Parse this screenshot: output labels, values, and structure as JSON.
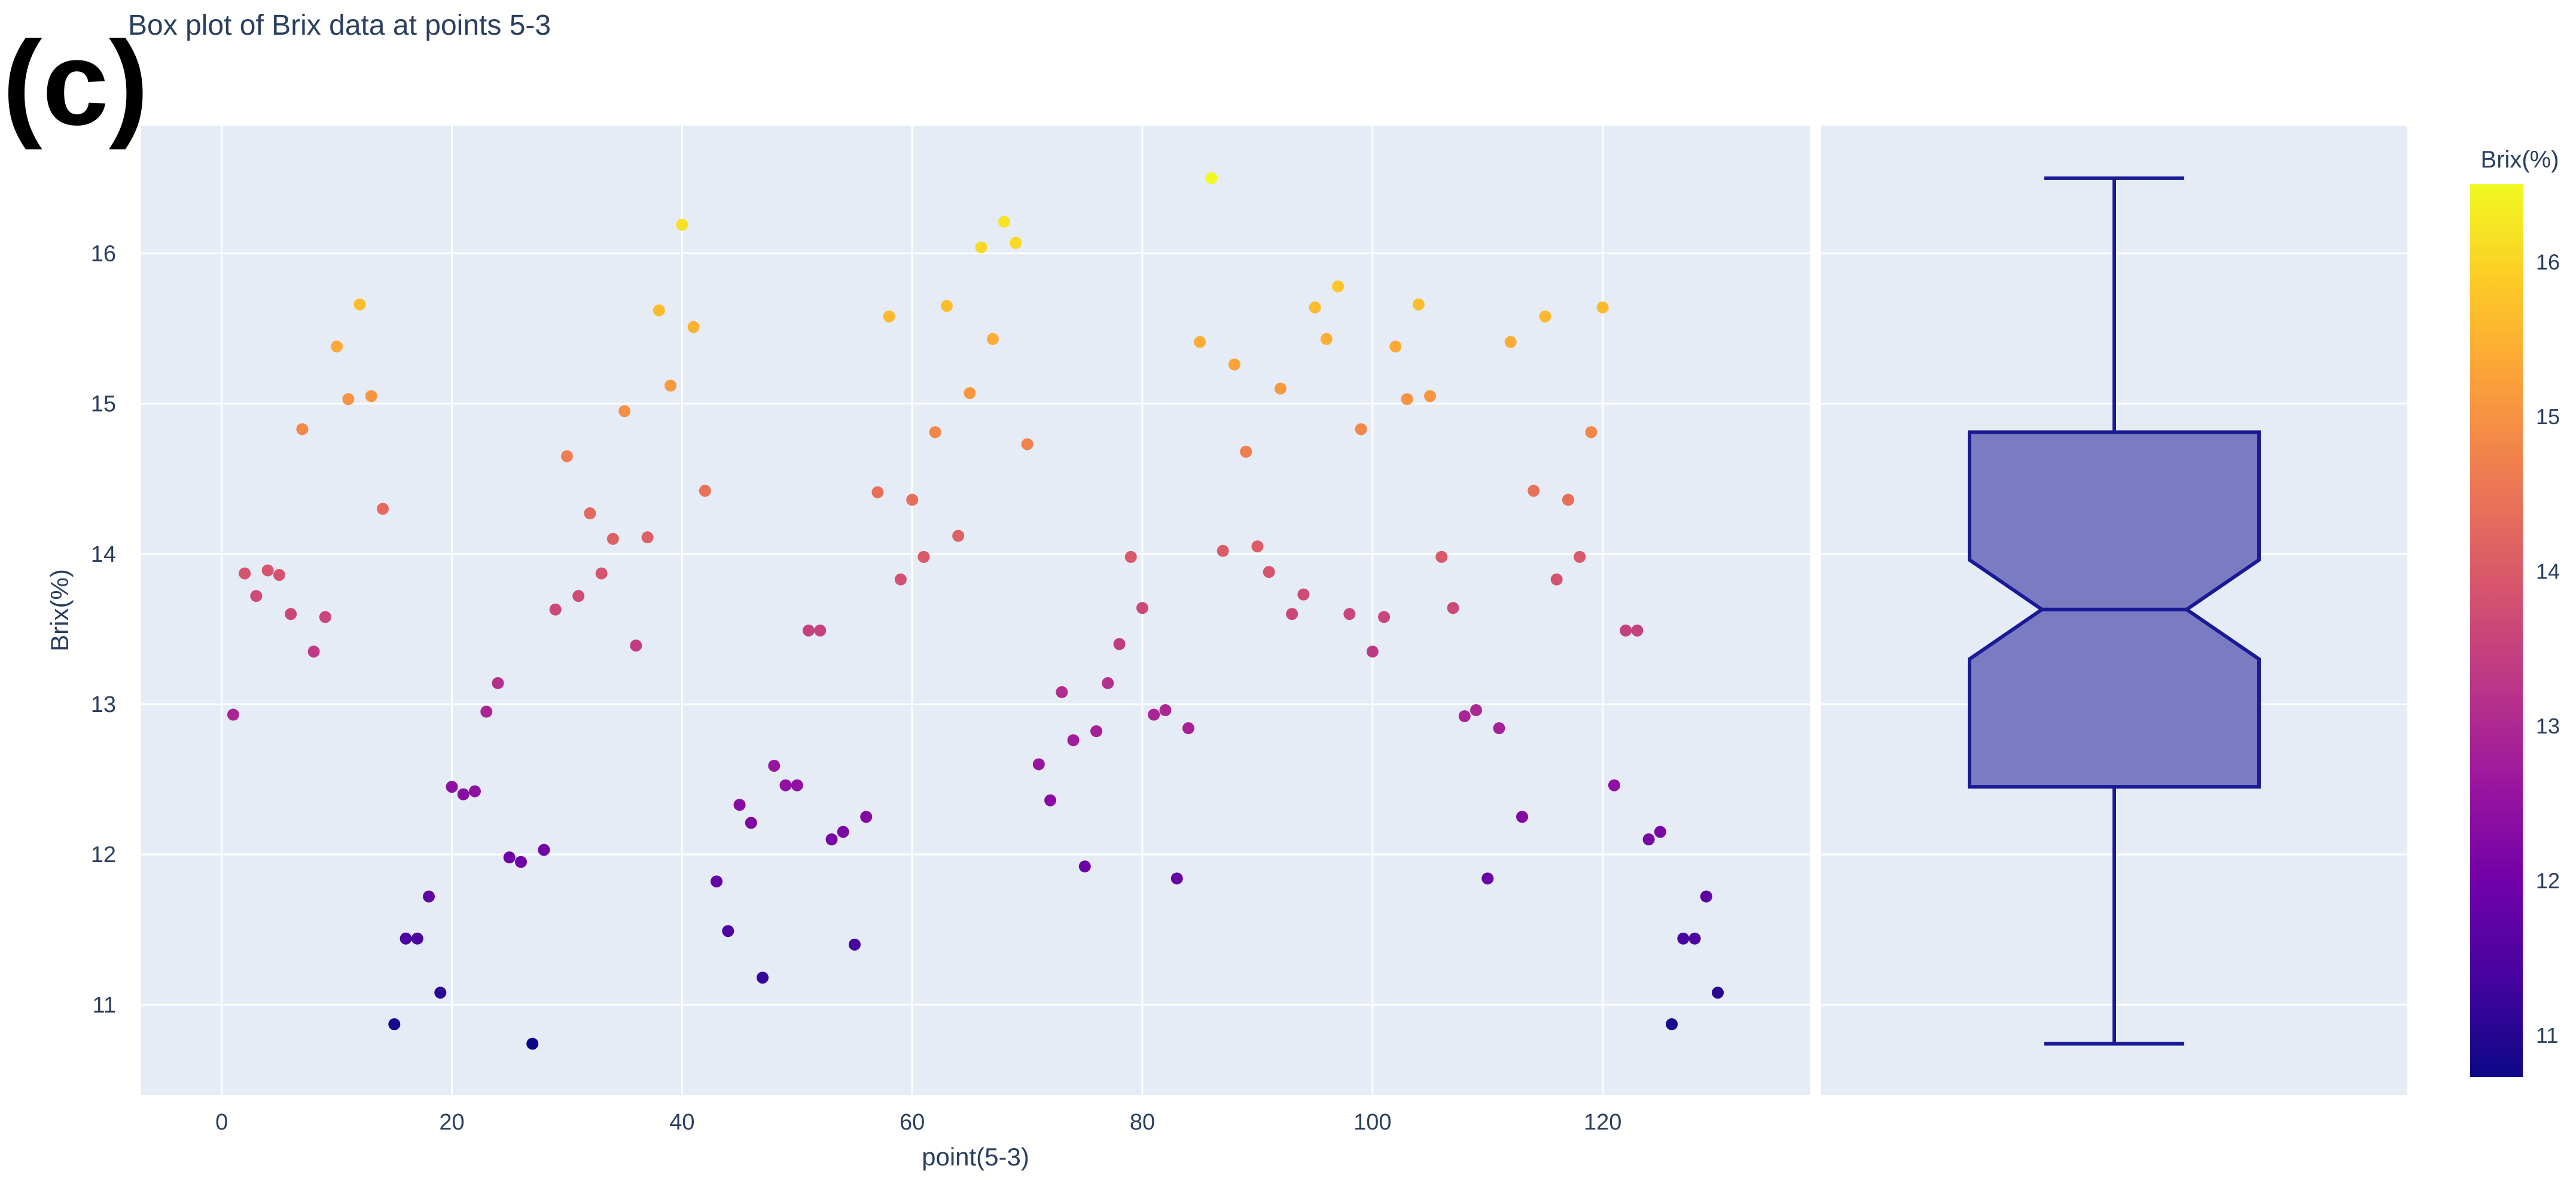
{
  "panel_label": "(c)",
  "chart_data": {
    "type": "scatter",
    "title": "Box plot of Brix data at points 5-3",
    "xlabel": "point(5-3)",
    "ylabel": "Brix(%)",
    "xlim": [
      -7,
      138
    ],
    "ylim": [
      10.4,
      16.85
    ],
    "xticks": [
      0,
      20,
      40,
      60,
      80,
      100,
      120
    ],
    "yticks": [
      11,
      12,
      13,
      14,
      15,
      16
    ],
    "colorbar": {
      "title": "Brix(%)",
      "range": [
        10.73,
        16.5
      ],
      "ticks": [
        11,
        12,
        13,
        14,
        15,
        16
      ],
      "colorscale": [
        "#0d0887",
        "#46039f",
        "#7201a8",
        "#9c179e",
        "#bd3786",
        "#d8576b",
        "#ed7953",
        "#fb9f3a",
        "#fdca26",
        "#f0f921"
      ]
    },
    "points": [
      [
        1,
        12.93
      ],
      [
        2,
        13.87
      ],
      [
        3,
        13.72
      ],
      [
        4,
        13.89
      ],
      [
        5,
        13.86
      ],
      [
        6,
        13.6
      ],
      [
        7,
        14.83
      ],
      [
        8,
        13.35
      ],
      [
        9,
        13.58
      ],
      [
        10,
        15.38
      ],
      [
        11,
        15.03
      ],
      [
        12,
        15.66
      ],
      [
        13,
        15.05
      ],
      [
        14,
        14.3
      ],
      [
        15,
        10.87
      ],
      [
        16,
        11.44
      ],
      [
        17,
        11.44
      ],
      [
        18,
        11.72
      ],
      [
        19,
        11.08
      ],
      [
        20,
        12.45
      ],
      [
        21,
        12.4
      ],
      [
        22,
        12.42
      ],
      [
        23,
        12.95
      ],
      [
        24,
        13.14
      ],
      [
        25,
        11.98
      ],
      [
        26,
        11.95
      ],
      [
        27,
        10.74
      ],
      [
        28,
        12.03
      ],
      [
        29,
        13.63
      ],
      [
        30,
        14.65
      ],
      [
        31,
        13.72
      ],
      [
        32,
        14.27
      ],
      [
        33,
        13.87
      ],
      [
        34,
        14.1
      ],
      [
        35,
        14.95
      ],
      [
        36,
        13.39
      ],
      [
        37,
        14.11
      ],
      [
        38,
        15.62
      ],
      [
        39,
        15.12
      ],
      [
        40,
        16.19
      ],
      [
        41,
        15.51
      ],
      [
        42,
        14.42
      ],
      [
        43,
        11.82
      ],
      [
        44,
        11.49
      ],
      [
        45,
        12.33
      ],
      [
        46,
        12.21
      ],
      [
        47,
        11.18
      ],
      [
        48,
        12.59
      ],
      [
        49,
        12.46
      ],
      [
        50,
        12.46
      ],
      [
        51,
        13.49
      ],
      [
        52,
        13.49
      ],
      [
        53,
        12.1
      ],
      [
        54,
        12.15
      ],
      [
        55,
        11.4
      ],
      [
        56,
        12.25
      ],
      [
        57,
        14.41
      ],
      [
        58,
        15.58
      ],
      [
        59,
        13.83
      ],
      [
        60,
        14.36
      ],
      [
        61,
        13.98
      ],
      [
        62,
        14.81
      ],
      [
        63,
        15.65
      ],
      [
        64,
        14.12
      ],
      [
        65,
        15.07
      ],
      [
        66,
        16.04
      ],
      [
        67,
        15.43
      ],
      [
        68,
        16.21
      ],
      [
        69,
        16.07
      ],
      [
        70,
        14.73
      ],
      [
        71,
        12.6
      ],
      [
        72,
        12.36
      ],
      [
        73,
        13.08
      ],
      [
        74,
        12.76
      ],
      [
        75,
        11.92
      ],
      [
        76,
        12.82
      ],
      [
        77,
        13.14
      ],
      [
        78,
        13.4
      ],
      [
        79,
        13.98
      ],
      [
        80,
        13.64
      ],
      [
        81,
        12.93
      ],
      [
        82,
        12.96
      ],
      [
        83,
        11.84
      ],
      [
        84,
        12.84
      ],
      [
        85,
        15.41
      ],
      [
        86,
        16.5
      ],
      [
        87,
        14.02
      ],
      [
        88,
        15.26
      ],
      [
        89,
        14.68
      ],
      [
        90,
        14.05
      ],
      [
        91,
        13.88
      ],
      [
        92,
        15.1
      ],
      [
        93,
        13.6
      ],
      [
        94,
        13.73
      ],
      [
        95,
        15.64
      ],
      [
        96,
        15.43
      ],
      [
        97,
        15.78
      ],
      [
        98,
        13.6
      ],
      [
        99,
        14.83
      ],
      [
        100,
        13.35
      ],
      [
        101,
        13.58
      ],
      [
        102,
        15.38
      ],
      [
        103,
        15.03
      ],
      [
        104,
        15.66
      ],
      [
        105,
        15.05
      ],
      [
        106,
        13.98
      ],
      [
        107,
        13.64
      ],
      [
        108,
        12.92
      ],
      [
        109,
        12.96
      ],
      [
        110,
        11.84
      ],
      [
        111,
        12.84
      ],
      [
        112,
        15.41
      ],
      [
        113,
        12.25
      ],
      [
        114,
        14.42
      ],
      [
        115,
        15.58
      ],
      [
        116,
        13.83
      ],
      [
        117,
        14.36
      ],
      [
        118,
        13.98
      ],
      [
        119,
        14.81
      ],
      [
        120,
        15.64
      ],
      [
        121,
        12.46
      ],
      [
        122,
        13.49
      ],
      [
        123,
        13.49
      ],
      [
        124,
        12.1
      ],
      [
        125,
        12.15
      ],
      [
        126,
        10.87
      ],
      [
        127,
        11.44
      ],
      [
        128,
        11.44
      ],
      [
        129,
        11.72
      ],
      [
        130,
        11.08
      ]
    ],
    "box": {
      "min": 10.74,
      "q1": 12.45,
      "median": 13.63,
      "q3": 14.81,
      "max": 16.5,
      "notch_low": 13.3,
      "notch_high": 13.96,
      "fill": "#7b7bc2",
      "line": "#1a1a96"
    },
    "grid": true,
    "plot_background": "#e5ecf6"
  }
}
